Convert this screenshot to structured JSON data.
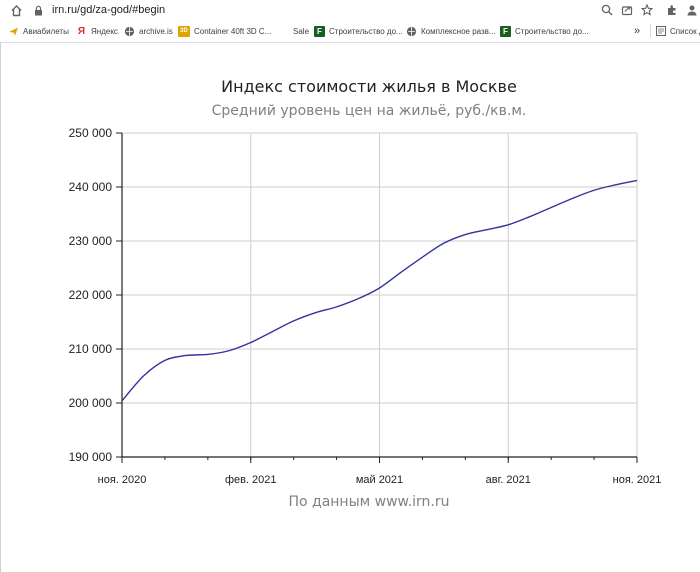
{
  "browser": {
    "url": "irn.ru/gd/za-god/#begin",
    "bookmarks": [
      {
        "label": "Авиабилеты",
        "icon": "plane-icon"
      },
      {
        "label": "Яндекс",
        "icon": "yandex-icon"
      },
      {
        "label": "archive.is",
        "icon": "archive-icon"
      },
      {
        "label": "Container 40ft 3D C...",
        "icon": "3d-icon"
      },
      {
        "label": "Sale",
        "icon": "blank-icon"
      },
      {
        "label": "Строительство до...",
        "icon": "f-icon"
      },
      {
        "label": "Комплексное разв...",
        "icon": "globe-icon"
      },
      {
        "label": "Строительство до...",
        "icon": "f-icon"
      }
    ],
    "overflow": "»",
    "reading_list": "Список д"
  },
  "chart_data": {
    "type": "line",
    "title": "Индекс стоимости жилья в Москве",
    "subtitle": "Средний уровень цен на жильё, руб./кв.м.",
    "source": "По данным www.irn.ru",
    "x_ticks": [
      "ноя. 2020",
      "фев. 2021",
      "май 2021",
      "авг. 2021",
      "ноя. 2021"
    ],
    "y_ticks": [
      "190 000",
      "200 000",
      "210 000",
      "220 000",
      "230 000",
      "240 000",
      "250 000"
    ],
    "ylim": [
      190000,
      250000
    ],
    "xlim": [
      0,
      12
    ],
    "grid": true,
    "color": "#33339c",
    "series": [
      {
        "x": [
          0,
          0.5,
          1,
          1.5,
          2,
          2.5,
          3,
          3.5,
          4,
          4.5,
          5,
          5.5,
          6,
          6.5,
          7,
          7.5,
          8,
          8.5,
          9,
          9.5,
          10,
          10.5,
          11,
          11.5,
          12
        ],
        "values": [
          200400,
          205000,
          207900,
          208800,
          209000,
          209700,
          211200,
          213200,
          215200,
          216700,
          217800,
          219300,
          221300,
          224200,
          227000,
          229600,
          231200,
          232100,
          233000,
          234500,
          236200,
          237900,
          239400,
          240400,
          241200
        ]
      }
    ]
  }
}
